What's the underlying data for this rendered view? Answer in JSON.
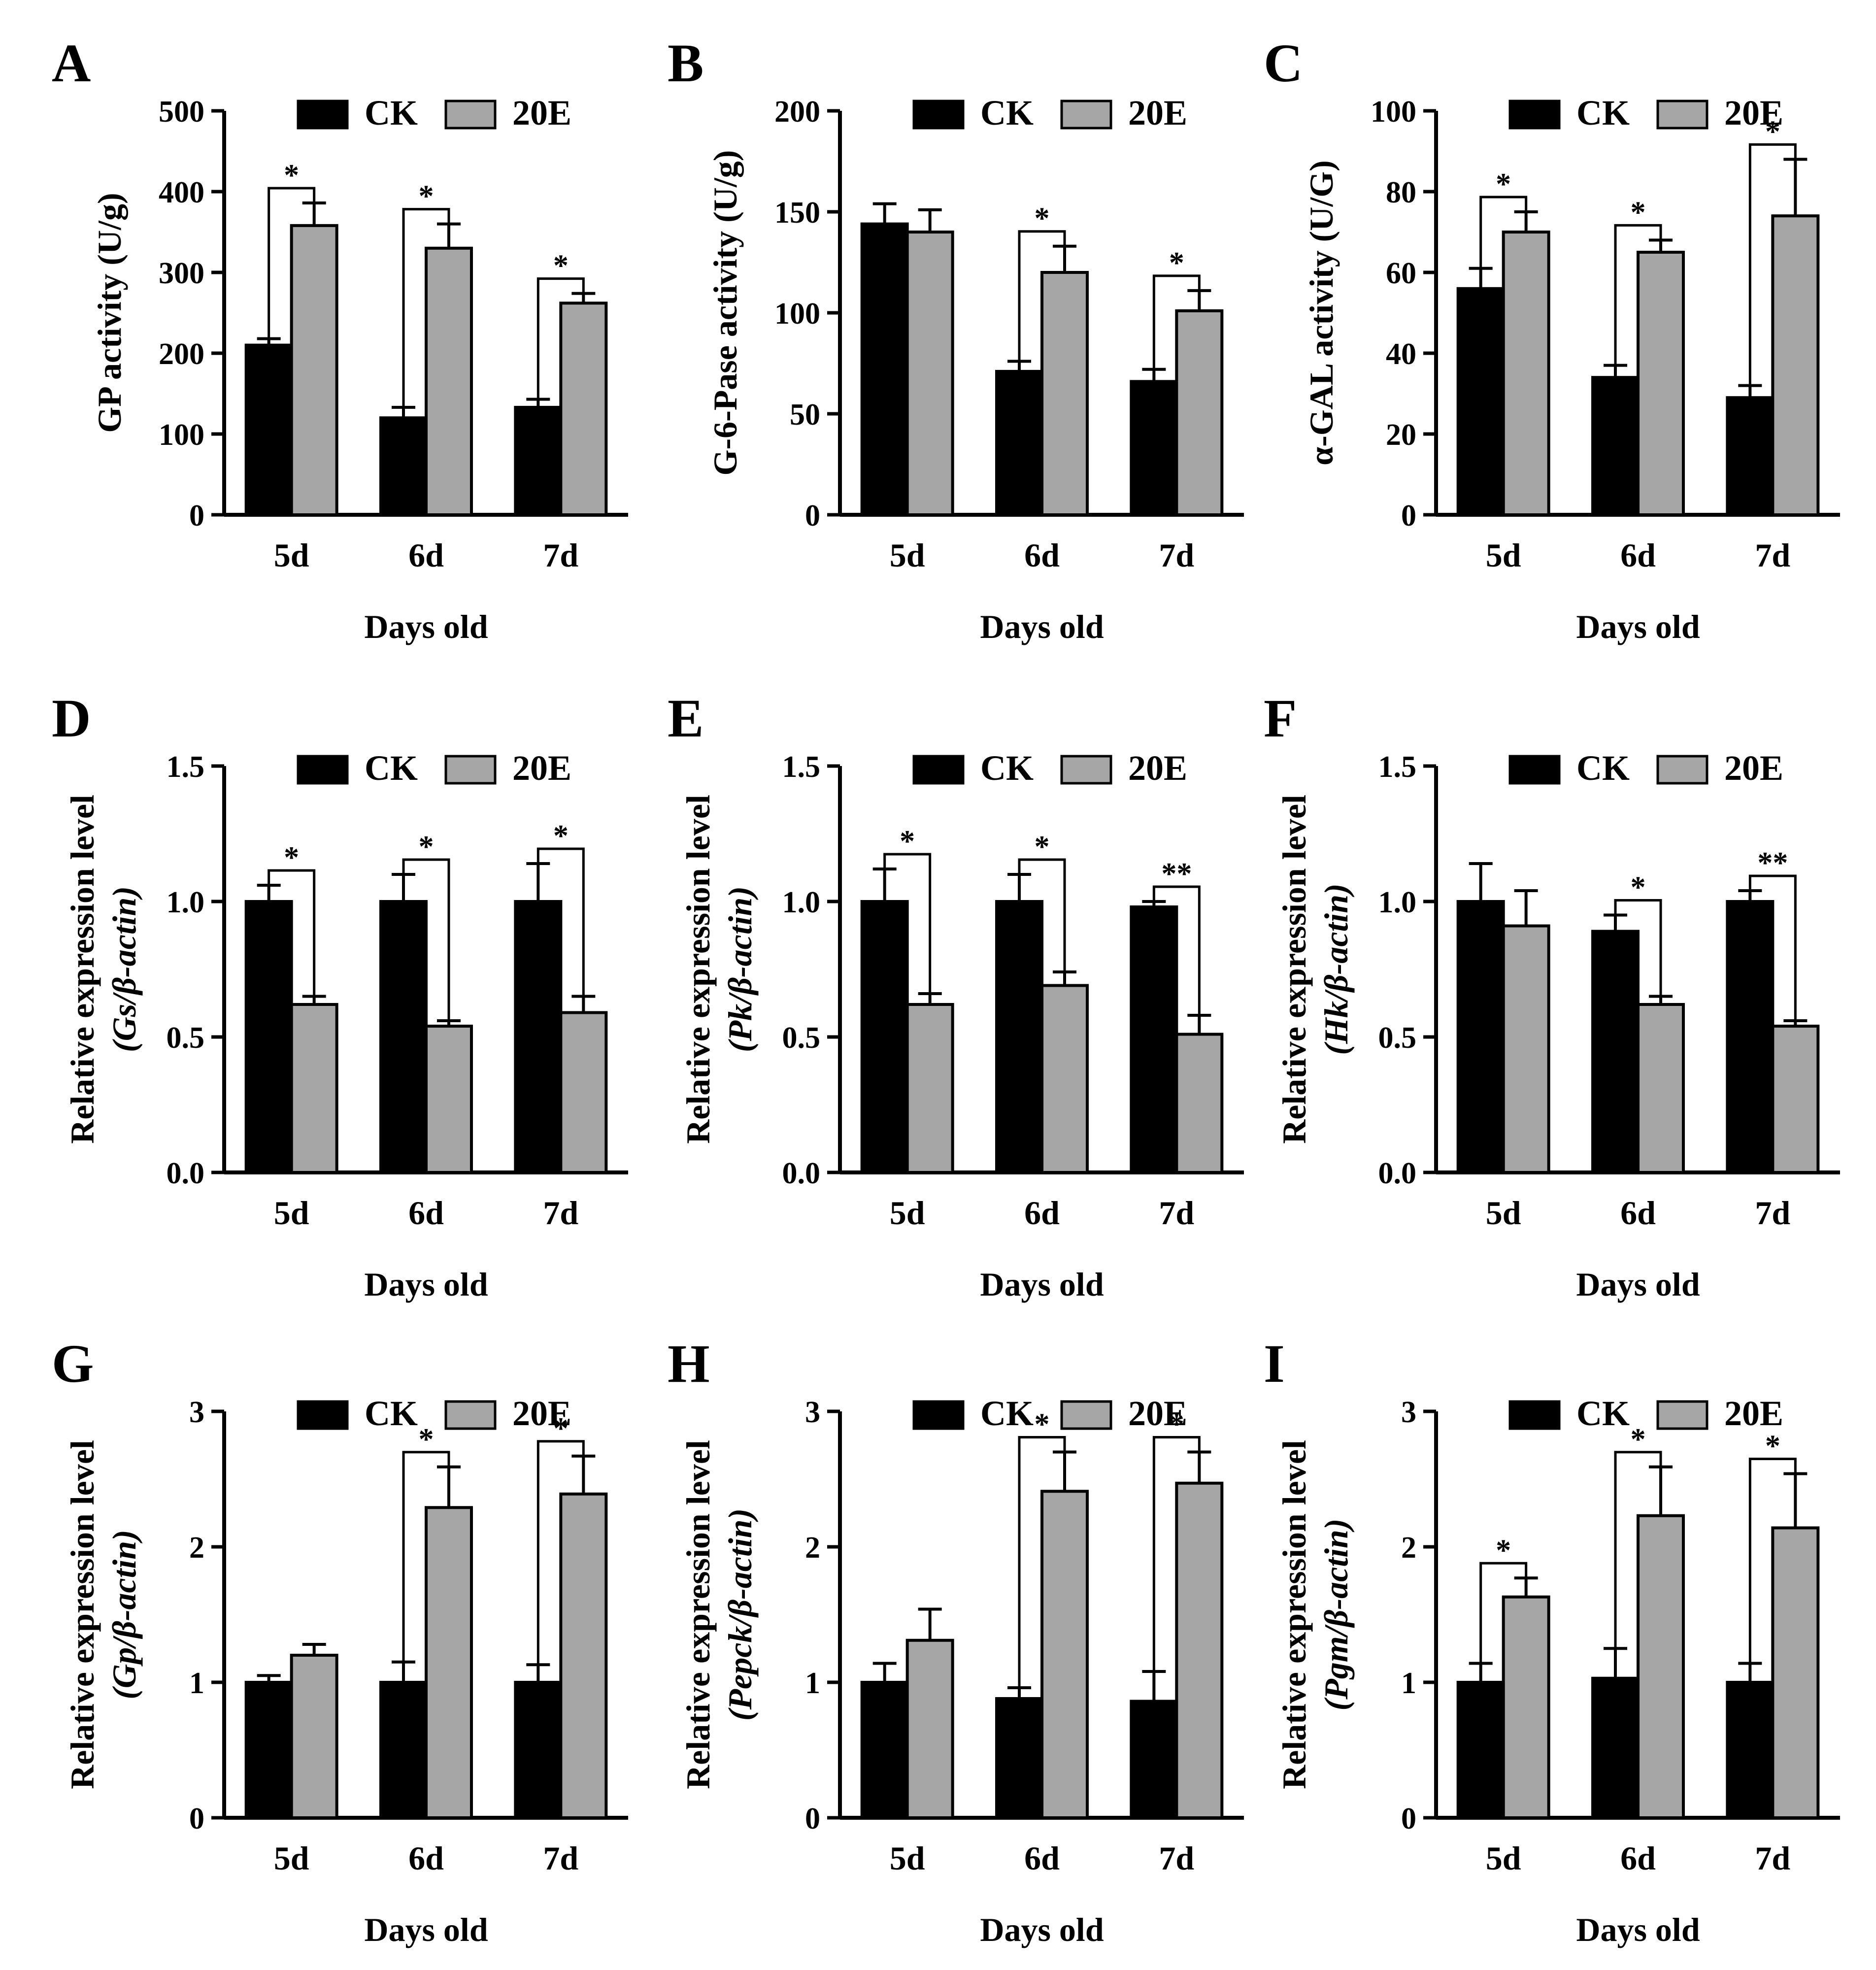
{
  "figure": {
    "legend": {
      "ck_label": "CK",
      "treat_label": "20E"
    },
    "colors": {
      "ck": "#000000",
      "treat": "#a6a6a6",
      "axis": "#000000"
    }
  },
  "chart_data": [
    {
      "panel": "A",
      "type": "bar",
      "ylabel": "GP activity (U/g)",
      "ylabel_gene": "",
      "xlabel": "Days old",
      "categories": [
        "5d",
        "6d",
        "7d"
      ],
      "ylim": [
        0,
        500
      ],
      "yticks": [
        "0",
        "100",
        "200",
        "300",
        "400",
        "500"
      ],
      "series": [
        {
          "name": "CK",
          "values": [
            210,
            120,
            133
          ],
          "errors": [
            8,
            13,
            10
          ]
        },
        {
          "name": "20E",
          "values": [
            358,
            330,
            262
          ],
          "errors": [
            28,
            30,
            12
          ]
        }
      ],
      "significance": [
        "*",
        "*",
        "*"
      ]
    },
    {
      "panel": "B",
      "type": "bar",
      "ylabel": "G-6-Pase activity (U/g)",
      "ylabel_gene": "",
      "xlabel": "Days old",
      "categories": [
        "5d",
        "6d",
        "7d"
      ],
      "ylim": [
        0,
        200
      ],
      "yticks": [
        "0",
        "50",
        "100",
        "150",
        "200"
      ],
      "series": [
        {
          "name": "CK",
          "values": [
            144,
            71,
            66
          ],
          "errors": [
            10,
            5,
            6
          ]
        },
        {
          "name": "20E",
          "values": [
            140,
            120,
            101
          ],
          "errors": [
            11,
            13,
            10
          ]
        }
      ],
      "significance": [
        "",
        "*",
        "*"
      ]
    },
    {
      "panel": "C",
      "type": "bar",
      "ylabel": "α-GAL activity (U/G)",
      "ylabel_gene": "",
      "xlabel": "Days old",
      "categories": [
        "5d",
        "6d",
        "7d"
      ],
      "ylim": [
        0,
        100
      ],
      "yticks": [
        "0",
        "20",
        "40",
        "60",
        "80",
        "100"
      ],
      "series": [
        {
          "name": "CK",
          "values": [
            56,
            34,
            29
          ],
          "errors": [
            5,
            3,
            3
          ]
        },
        {
          "name": "20E",
          "values": [
            70,
            65,
            74
          ],
          "errors": [
            5,
            3,
            14
          ]
        }
      ],
      "significance": [
        "*",
        "*",
        "*"
      ]
    },
    {
      "panel": "D",
      "type": "bar",
      "ylabel": "Relative expression level",
      "ylabel_gene": "(Gs/β-actin)",
      "xlabel": "Days old",
      "categories": [
        "5d",
        "6d",
        "7d"
      ],
      "ylim": [
        0,
        1.5
      ],
      "yticks": [
        "0.0",
        "0.5",
        "1.0",
        "1.5"
      ],
      "series": [
        {
          "name": "CK",
          "values": [
            1.0,
            1.0,
            1.0
          ],
          "errors": [
            0.06,
            0.1,
            0.14
          ]
        },
        {
          "name": "20E",
          "values": [
            0.62,
            0.54,
            0.59
          ],
          "errors": [
            0.03,
            0.02,
            0.06
          ]
        }
      ],
      "significance": [
        "*",
        "*",
        "*"
      ]
    },
    {
      "panel": "E",
      "type": "bar",
      "ylabel": "Relative expression level",
      "ylabel_gene": "(Pk/β-actin)",
      "xlabel": "Days old",
      "categories": [
        "5d",
        "6d",
        "7d"
      ],
      "ylim": [
        0,
        1.5
      ],
      "yticks": [
        "0.0",
        "0.5",
        "1.0",
        "1.5"
      ],
      "series": [
        {
          "name": "CK",
          "values": [
            1.0,
            1.0,
            0.98
          ],
          "errors": [
            0.12,
            0.1,
            0.02
          ]
        },
        {
          "name": "20E",
          "values": [
            0.62,
            0.69,
            0.51
          ],
          "errors": [
            0.04,
            0.05,
            0.07
          ]
        }
      ],
      "significance": [
        "*",
        "*",
        "**"
      ]
    },
    {
      "panel": "F",
      "type": "bar",
      "ylabel": "Relative expression level",
      "ylabel_gene": "(Hk/β-actin)",
      "xlabel": "Days old",
      "categories": [
        "5d",
        "6d",
        "7d"
      ],
      "ylim": [
        0,
        1.5
      ],
      "yticks": [
        "0.0",
        "0.5",
        "1.0",
        "1.5"
      ],
      "series": [
        {
          "name": "CK",
          "values": [
            1.0,
            0.89,
            1.0
          ],
          "errors": [
            0.14,
            0.06,
            0.04
          ]
        },
        {
          "name": "20E",
          "values": [
            0.91,
            0.62,
            0.54
          ],
          "errors": [
            0.13,
            0.03,
            0.02
          ]
        }
      ],
      "significance": [
        "",
        "*",
        "**"
      ]
    },
    {
      "panel": "G",
      "type": "bar",
      "ylabel": "Relative expression level",
      "ylabel_gene": "(Gp/β-actin)",
      "xlabel": "Days old",
      "categories": [
        "5d",
        "6d",
        "7d"
      ],
      "ylim": [
        0,
        3
      ],
      "yticks": [
        "0",
        "1",
        "2",
        "3"
      ],
      "series": [
        {
          "name": "CK",
          "values": [
            1.0,
            1.0,
            1.0
          ],
          "errors": [
            0.05,
            0.15,
            0.13
          ]
        },
        {
          "name": "20E",
          "values": [
            1.2,
            2.29,
            2.39
          ],
          "errors": [
            0.08,
            0.3,
            0.28
          ]
        }
      ],
      "significance": [
        "",
        "*",
        "*"
      ]
    },
    {
      "panel": "H",
      "type": "bar",
      "ylabel": "Relative expression level",
      "ylabel_gene": "(Pepck/β-actin)",
      "xlabel": "Days old",
      "categories": [
        "5d",
        "6d",
        "7d"
      ],
      "ylim": [
        0,
        3
      ],
      "yticks": [
        "0",
        "1",
        "2",
        "3"
      ],
      "series": [
        {
          "name": "CK",
          "values": [
            1.0,
            0.88,
            0.86
          ],
          "errors": [
            0.14,
            0.08,
            0.22
          ]
        },
        {
          "name": "20E",
          "values": [
            1.31,
            2.41,
            2.47
          ],
          "errors": [
            0.23,
            0.29,
            0.23
          ]
        }
      ],
      "significance": [
        "",
        "*",
        "*"
      ]
    },
    {
      "panel": "I",
      "type": "bar",
      "ylabel": "Relative expression level",
      "ylabel_gene": "(Pgm/β-actin)",
      "xlabel": "Days old",
      "categories": [
        "5d",
        "6d",
        "7d"
      ],
      "ylim": [
        0,
        3
      ],
      "yticks": [
        "0",
        "1",
        "2",
        "3"
      ],
      "series": [
        {
          "name": "CK",
          "values": [
            1.0,
            1.03,
            1.0
          ],
          "errors": [
            0.14,
            0.22,
            0.14
          ]
        },
        {
          "name": "20E",
          "values": [
            1.63,
            2.23,
            2.14
          ],
          "errors": [
            0.14,
            0.36,
            0.4
          ]
        }
      ],
      "significance": [
        "*",
        "*",
        "*"
      ]
    }
  ]
}
